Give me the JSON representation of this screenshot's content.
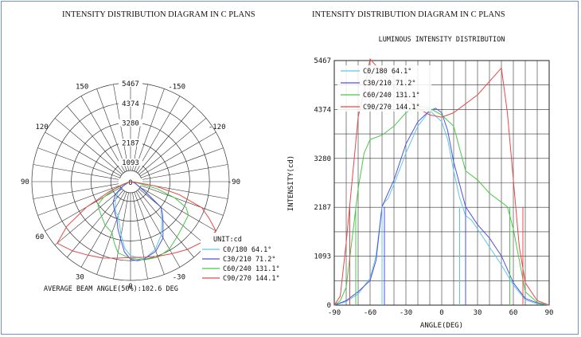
{
  "chart_data": [
    {
      "type": "polar",
      "title": "INTENSITY DISTRIBUTION DIAGRAM IN C PLANS",
      "radial_ticks": [
        0,
        1093,
        2187,
        3280,
        4374,
        5467
      ],
      "rmax": 5467,
      "angle_labels": [
        {
          "angle": -150,
          "label": "-150"
        },
        {
          "angle": 150,
          "label": "150"
        },
        {
          "angle": -120,
          "label": "-120"
        },
        {
          "angle": 120,
          "label": "120"
        },
        {
          "angle": -90,
          "label": "-90"
        },
        {
          "angle": 90,
          "label": "90"
        },
        {
          "angle": -60,
          "label": "-60"
        },
        {
          "angle": 60,
          "label": "60"
        },
        {
          "angle": -30,
          "label": "-30"
        },
        {
          "angle": 30,
          "label": "30"
        },
        {
          "angle": 0,
          "label": "0"
        }
      ],
      "unit_label": "UNIT:cd",
      "beam_angle_label": "AVERAGE BEAM ANGLE(50%):102.6 DEG",
      "legend": [
        {
          "label": "C0/180  64.1°",
          "color": "#5cc8e8"
        },
        {
          "label": "C30/210  71.2°",
          "color": "#5050e0"
        },
        {
          "label": "C60/240  131.1°",
          "color": "#48c848"
        },
        {
          "label": "C90/270  144.1°",
          "color": "#e84848"
        }
      ]
    },
    {
      "type": "line",
      "title": "INTENSITY DISTRIBUTION DIAGRAM IN C PLANS",
      "subtitle": "LUMINOUS INTENSITY DISTRIBUTION",
      "xlabel": "ANGLE(DEG)",
      "ylabel": "INTENSITY(cd)",
      "xlim": [
        -90,
        90
      ],
      "ylim": [
        0,
        5467
      ],
      "xticks": [
        -90,
        -60,
        -30,
        0,
        30,
        60,
        90
      ],
      "yticks": [
        0,
        1093,
        2187,
        3280,
        4374,
        5467
      ],
      "grid": true,
      "legend_position": "top-left",
      "series": [
        {
          "name": "C0/180  64.1°",
          "color": "#5cc8e8",
          "x": [
            -90,
            -80,
            -70,
            -60,
            -55,
            -50,
            -48,
            -45,
            -40,
            -30,
            -20,
            -10,
            0,
            5,
            10,
            15,
            20,
            25,
            30,
            40,
            50,
            60,
            70,
            80,
            90
          ],
          "y": [
            0,
            80,
            250,
            600,
            1100,
            2200,
            2300,
            2380,
            2700,
            3400,
            4000,
            4350,
            4100,
            3700,
            3000,
            2400,
            2000,
            1900,
            1700,
            1300,
            900,
            450,
            120,
            30,
            0
          ]
        },
        {
          "name": "C30/210  71.2°",
          "color": "#5050e0",
          "x": [
            -90,
            -80,
            -70,
            -60,
            -55,
            -50,
            -45,
            -40,
            -30,
            -20,
            -10,
            -5,
            0,
            5,
            10,
            15,
            20,
            25,
            30,
            40,
            50,
            60,
            70,
            80,
            90
          ],
          "y": [
            0,
            100,
            300,
            550,
            1000,
            2200,
            2500,
            2800,
            3600,
            4100,
            4350,
            4400,
            4300,
            3900,
            3200,
            2700,
            2200,
            2000,
            1800,
            1500,
            1100,
            500,
            150,
            50,
            0
          ]
        },
        {
          "name": "C60/240  131.1°",
          "color": "#48c848",
          "x": [
            -90,
            -85,
            -80,
            -75,
            -70,
            -65,
            -60,
            -50,
            -40,
            -30,
            -20,
            -10,
            0,
            10,
            15,
            20,
            30,
            40,
            50,
            55,
            60,
            65,
            70,
            80,
            90
          ],
          "y": [
            0,
            100,
            400,
            1500,
            2600,
            3400,
            3700,
            3800,
            4000,
            4300,
            4450,
            4400,
            4250,
            4000,
            3500,
            3000,
            2800,
            2500,
            2300,
            2200,
            1700,
            1000,
            300,
            60,
            0
          ]
        },
        {
          "name": "C90/270  144.1°",
          "color": "#e84848",
          "x": [
            -90,
            -85,
            -80,
            -75,
            -70,
            -65,
            -60,
            -50,
            -40,
            -30,
            -20,
            -10,
            0,
            10,
            20,
            30,
            40,
            50,
            55,
            60,
            65,
            70,
            80,
            90
          ],
          "y": [
            0,
            200,
            1400,
            2800,
            4200,
            4800,
            5500,
            5200,
            4900,
            4600,
            4400,
            4250,
            4200,
            4300,
            4500,
            4700,
            5000,
            5300,
            4300,
            2800,
            1300,
            500,
            100,
            0
          ]
        }
      ]
    }
  ]
}
